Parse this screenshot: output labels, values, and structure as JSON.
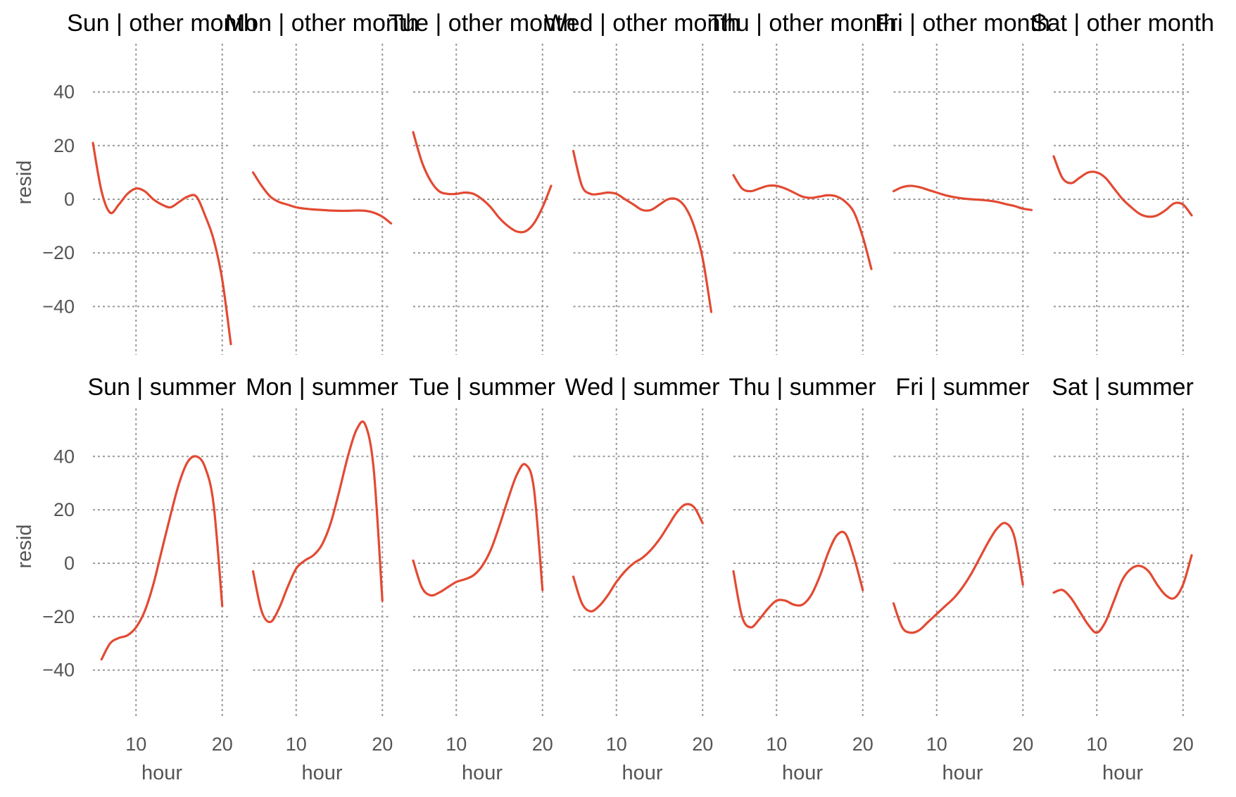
{
  "chart_data": {
    "type": "line",
    "xlabel": "hour",
    "ylabel": "resid",
    "xlim": [
      5,
      21
    ],
    "ylim": [
      -58,
      58
    ],
    "x_ticks": [
      10,
      20
    ],
    "y_ticks": [
      -40,
      -20,
      0,
      20,
      40
    ],
    "grid": true,
    "line_color": "#E24A33",
    "panels": [
      {
        "title": "Sun | other month",
        "row": 0,
        "col": 0,
        "x": [
          5,
          6,
          7,
          8,
          9,
          10,
          11,
          12,
          13,
          14,
          15,
          16,
          17,
          18,
          19,
          20,
          21
        ],
        "y": [
          21,
          3,
          -5,
          -2,
          2,
          4,
          3,
          0,
          -2,
          -3,
          -1,
          1,
          1,
          -6,
          -15,
          -30,
          -54
        ]
      },
      {
        "title": "Mon | other month",
        "row": 0,
        "col": 1,
        "x": [
          5,
          6,
          7,
          8,
          9,
          10,
          11,
          12,
          13,
          14,
          15,
          16,
          17,
          18,
          19,
          20,
          21
        ],
        "y": [
          10,
          5,
          1,
          -1,
          -2,
          -3,
          -3.5,
          -3.8,
          -4,
          -4.2,
          -4.3,
          -4.3,
          -4.2,
          -4.3,
          -5,
          -6.5,
          -9
        ]
      },
      {
        "title": "Tue | other month",
        "row": 0,
        "col": 2,
        "x": [
          5,
          6,
          7,
          8,
          9,
          10,
          11,
          12,
          13,
          14,
          15,
          16,
          17,
          18,
          19,
          20,
          21
        ],
        "y": [
          25,
          14,
          7,
          3,
          2,
          2,
          2.5,
          2,
          0,
          -3,
          -7,
          -10,
          -12,
          -12,
          -9,
          -3,
          5
        ]
      },
      {
        "title": "Wed | other month",
        "row": 0,
        "col": 3,
        "x": [
          5,
          6,
          7,
          8,
          9,
          10,
          11,
          12,
          13,
          14,
          15,
          16,
          17,
          18,
          19,
          20,
          21
        ],
        "y": [
          18,
          5,
          2,
          2,
          2.5,
          2,
          0,
          -2,
          -4,
          -4,
          -2,
          0,
          0,
          -3,
          -10,
          -22,
          -42
        ]
      },
      {
        "title": "Thu | other month",
        "row": 0,
        "col": 4,
        "x": [
          5,
          6,
          7,
          8,
          9,
          10,
          11,
          12,
          13,
          14,
          15,
          16,
          17,
          18,
          19,
          20,
          21
        ],
        "y": [
          9,
          4,
          3,
          4,
          5,
          5,
          4,
          2.5,
          1,
          0.5,
          1,
          1.5,
          1,
          -1,
          -5,
          -14,
          -26
        ]
      },
      {
        "title": "Fri | other month",
        "row": 0,
        "col": 5,
        "x": [
          5,
          6,
          7,
          8,
          9,
          10,
          11,
          12,
          13,
          14,
          15,
          16,
          17,
          18,
          19,
          20,
          21
        ],
        "y": [
          3,
          4.5,
          5,
          4.5,
          3.5,
          2.5,
          1.5,
          0.8,
          0.3,
          0,
          -0.2,
          -0.5,
          -1,
          -1.8,
          -2.5,
          -3.5,
          -4
        ]
      },
      {
        "title": "Sat | other month",
        "row": 0,
        "col": 6,
        "x": [
          5,
          6,
          7,
          8,
          9,
          10,
          11,
          12,
          13,
          14,
          15,
          16,
          17,
          18,
          19,
          20,
          21
        ],
        "y": [
          16,
          8,
          6,
          8,
          10,
          10,
          8,
          4,
          0,
          -3,
          -5.5,
          -6.5,
          -6,
          -4,
          -1.5,
          -2,
          -6
        ]
      },
      {
        "title": "Sun | summer",
        "row": 1,
        "col": 0,
        "x": [
          6,
          7,
          8,
          9,
          10,
          11,
          12,
          13,
          14,
          15,
          16,
          17,
          18,
          19,
          20
        ],
        "y": [
          -36,
          -30,
          -28,
          -27,
          -24,
          -18,
          -8,
          5,
          18,
          30,
          38,
          40,
          36,
          22,
          -16
        ]
      },
      {
        "title": "Mon | summer",
        "row": 1,
        "col": 1,
        "x": [
          5,
          6,
          7,
          8,
          9,
          10,
          11,
          12,
          13,
          14,
          15,
          16,
          17,
          18,
          19,
          20
        ],
        "y": [
          -3,
          -18,
          -22,
          -17,
          -9,
          -2,
          1,
          3,
          7,
          15,
          27,
          40,
          50,
          52,
          35,
          -14
        ]
      },
      {
        "title": "Tue | summer",
        "row": 1,
        "col": 2,
        "x": [
          5,
          6,
          7,
          8,
          9,
          10,
          11,
          12,
          13,
          14,
          15,
          16,
          17,
          18,
          19,
          20
        ],
        "y": [
          1,
          -9,
          -12,
          -11,
          -9,
          -7,
          -6,
          -4.5,
          -1,
          5,
          14,
          24,
          33,
          37,
          28,
          -10
        ]
      },
      {
        "title": "Wed | summer",
        "row": 1,
        "col": 3,
        "x": [
          5,
          6,
          7,
          8,
          9,
          10,
          11,
          12,
          13,
          14,
          15,
          16,
          17,
          18,
          19,
          20
        ],
        "y": [
          -5,
          -15,
          -18,
          -16,
          -12,
          -7,
          -3,
          0,
          2,
          5,
          9,
          14,
          19,
          22,
          21,
          15
        ]
      },
      {
        "title": "Thu | summer",
        "row": 1,
        "col": 4,
        "x": [
          5,
          6,
          7,
          8,
          9,
          10,
          11,
          12,
          13,
          14,
          15,
          16,
          17,
          18,
          19,
          20
        ],
        "y": [
          -3,
          -20,
          -24,
          -21,
          -17,
          -14,
          -14,
          -15.5,
          -15.5,
          -12,
          -5,
          4,
          10.5,
          11,
          2,
          -10
        ]
      },
      {
        "title": "Fri | summer",
        "row": 1,
        "col": 5,
        "x": [
          5,
          6,
          7,
          8,
          9,
          10,
          11,
          12,
          13,
          14,
          15,
          16,
          17,
          18,
          19,
          20
        ],
        "y": [
          -15,
          -24,
          -26,
          -25,
          -22,
          -19,
          -16,
          -13,
          -9,
          -4,
          2,
          8,
          13,
          15,
          10,
          -8
        ]
      },
      {
        "title": "Sat | summer",
        "row": 1,
        "col": 6,
        "x": [
          5,
          6,
          7,
          8,
          9,
          10,
          11,
          12,
          13,
          14,
          15,
          16,
          17,
          18,
          19,
          20,
          21
        ],
        "y": [
          -11,
          -10,
          -13,
          -18,
          -23,
          -26,
          -22,
          -14,
          -6,
          -2,
          -1,
          -3,
          -8,
          -12,
          -13,
          -8,
          3
        ]
      }
    ]
  }
}
